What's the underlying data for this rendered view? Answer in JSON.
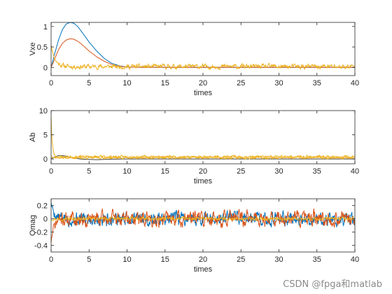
{
  "watermark": "CSDN @fpga和matlab",
  "colors": {
    "blue": "#0072BD",
    "orange": "#D95319",
    "yellow": "#EDB120",
    "dark": "#404040"
  },
  "chart_data": [
    {
      "type": "line",
      "xlabel": "times",
      "ylabel": "Vxe",
      "xlim": [
        0,
        40
      ],
      "ylim": [
        -0.2,
        1.1
      ],
      "xticks": [
        0,
        5,
        10,
        15,
        20,
        25,
        30,
        35,
        40
      ],
      "yticks": [
        0,
        0.5,
        1
      ],
      "ytick_labels": [
        "0",
        "0.5",
        "1"
      ],
      "grid": false,
      "series": [
        {
          "color": "#0072BD",
          "kind": "smooth",
          "x": [
            0,
            0.5,
            1,
            1.5,
            2,
            2.5,
            3,
            3.5,
            4,
            5,
            6,
            7,
            8,
            9,
            10,
            12,
            15,
            20,
            25,
            30,
            35,
            40
          ],
          "y": [
            0,
            0.35,
            0.68,
            0.93,
            1.06,
            1.1,
            1.08,
            1.0,
            0.88,
            0.62,
            0.4,
            0.22,
            0.1,
            0.04,
            0.01,
            0,
            0,
            0,
            0,
            0,
            0,
            0
          ]
        },
        {
          "color": "#D95319",
          "kind": "smooth",
          "x": [
            0,
            0.5,
            1,
            1.5,
            2,
            2.5,
            3,
            3.5,
            4,
            5,
            6,
            7,
            8,
            9,
            10,
            12,
            15,
            20,
            25,
            30,
            35,
            40
          ],
          "y": [
            0,
            0.22,
            0.44,
            0.59,
            0.67,
            0.7,
            0.69,
            0.64,
            0.57,
            0.4,
            0.26,
            0.15,
            0.07,
            0.03,
            0.01,
            0,
            0,
            0,
            0,
            0,
            0,
            0
          ]
        },
        {
          "color": "#EDB120",
          "kind": "noisy",
          "seed": 11,
          "start": [
            0,
            0.55
          ],
          "decay": [
            0.5,
            0.0
          ],
          "mean": 0.02,
          "amp": 0.1,
          "x_end": 40
        }
      ]
    },
    {
      "type": "line",
      "xlabel": "times",
      "ylabel": "Ab",
      "xlim": [
        0,
        40
      ],
      "ylim": [
        -1,
        10
      ],
      "xticks": [
        0,
        5,
        10,
        15,
        20,
        25,
        30,
        35,
        40
      ],
      "yticks": [
        0,
        5,
        10
      ],
      "ytick_labels": [
        "0",
        "5",
        "10"
      ],
      "grid": false,
      "series": [
        {
          "color": "#404040",
          "kind": "smooth",
          "x": [
            0,
            0.3,
            0.7,
            1,
            1.5,
            2,
            3,
            4,
            6,
            8,
            10,
            15,
            20,
            25,
            30,
            35,
            40
          ],
          "y": [
            0,
            0.3,
            0.55,
            0.7,
            0.7,
            0.55,
            0.2,
            -0.05,
            -0.15,
            -0.05,
            0,
            0,
            0,
            0,
            0,
            0,
            0
          ]
        },
        {
          "color": "#EDB120",
          "kind": "noisy",
          "seed": 23,
          "start": [
            0,
            8.6
          ],
          "decay": [
            0.15,
            0.0
          ],
          "mean": 0.45,
          "amp": 0.45,
          "x_end": 40
        },
        {
          "color": "#EDB120",
          "kind": "noisy",
          "seed": 37,
          "start": [
            0,
            0.6
          ],
          "decay": [
            0.3,
            0.0
          ],
          "mean": 0.25,
          "amp": 0.4,
          "x_end": 40
        }
      ]
    },
    {
      "type": "line",
      "xlabel": "times",
      "ylabel": "Omag",
      "xlim": [
        0,
        40
      ],
      "ylim": [
        -0.5,
        0.3
      ],
      "xticks": [
        0,
        5,
        10,
        15,
        20,
        25,
        30,
        35,
        40
      ],
      "yticks": [
        -0.4,
        -0.2,
        0,
        0.2
      ],
      "ytick_labels": [
        "-0.4",
        "-0.2",
        "0",
        "0.2"
      ],
      "grid": false,
      "series": [
        {
          "color": "#0072BD",
          "kind": "noisy",
          "seed": 5,
          "start": [
            0,
            0.25
          ],
          "decay": [
            0.4,
            0.0
          ],
          "mean": 0.0,
          "amp": 0.18,
          "x_end": 40
        },
        {
          "color": "#D95319",
          "kind": "noisy",
          "seed": 71,
          "start": [
            0,
            -0.35
          ],
          "decay": [
            0.4,
            0.0
          ],
          "mean": 0.0,
          "amp": 0.2,
          "x_end": 40
        },
        {
          "color": "#EDB120",
          "kind": "noisy",
          "seed": 97,
          "start": [
            0,
            0.0
          ],
          "decay": [
            0.0,
            0.0
          ],
          "mean": 0.0,
          "amp": 0.04,
          "x_end": 40
        }
      ]
    }
  ]
}
